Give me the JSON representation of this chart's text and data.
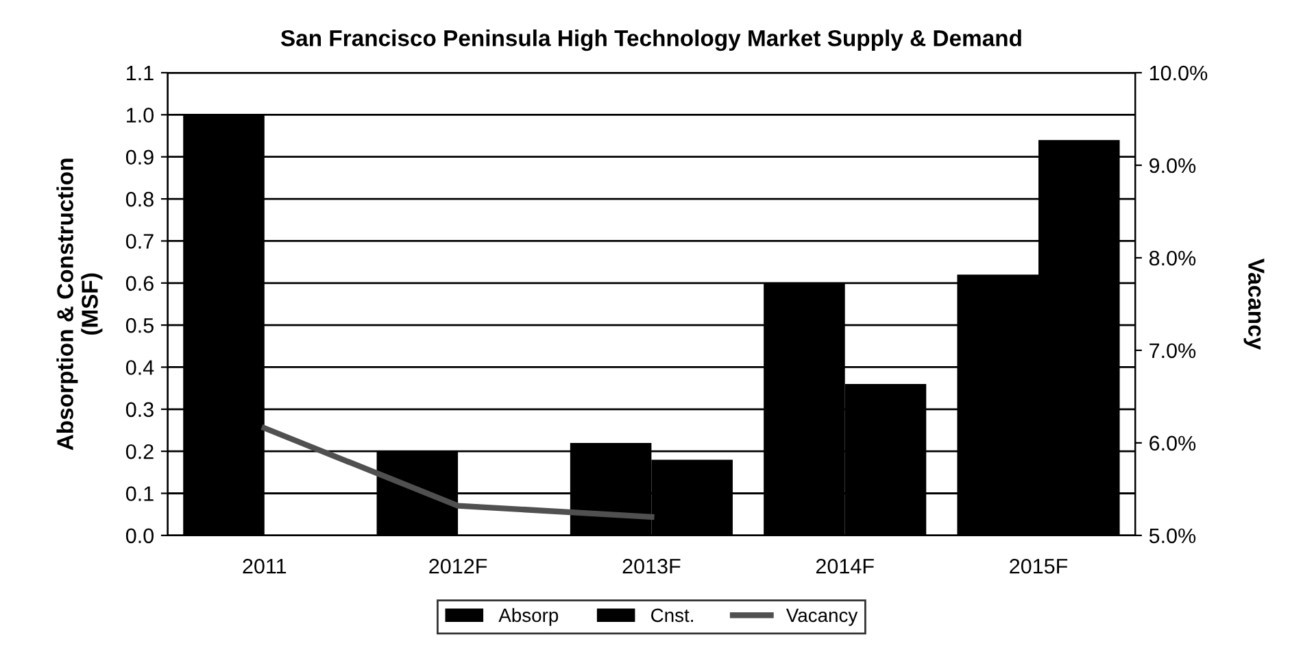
{
  "chart_data": {
    "type": "bar",
    "title": "San Francisco Peninsula High Technology Market Supply & Demand",
    "categories": [
      "2011",
      "2012F",
      "2013F",
      "2014F",
      "2015F"
    ],
    "series": [
      {
        "name": "Absorp",
        "color": "#000000",
        "values": [
          1.0,
          0.2,
          0.22,
          0.6,
          0.62
        ]
      },
      {
        "name": "Cnst.",
        "color": "#000000",
        "values": [
          0,
          0,
          0.18,
          0.36,
          0.94
        ]
      },
      {
        "name": "Vacancy",
        "type": "line",
        "axis": "y2",
        "color": "#505050",
        "values": [
          6.16,
          5.32,
          5.2,
          null,
          null
        ]
      }
    ],
    "ylabel": "Absorption & Construction\n(MSF)",
    "y2label": "Vacancy",
    "ylim": [
      0,
      1.1
    ],
    "yticks": [
      {
        "value": 0,
        "label": "0.0"
      },
      0.1,
      0.2,
      0.3,
      0.4,
      0.5,
      0.6,
      0.7,
      0.8,
      0.9,
      {
        "value": 1,
        "label": "1.0"
      },
      1.1
    ],
    "y2lim": [
      5,
      10
    ],
    "y2ticks": [
      {
        "value": 5,
        "label": "5.0%"
      },
      {
        "value": 6,
        "label": "6.0%"
      },
      {
        "value": 7,
        "label": "7.0%"
      },
      {
        "value": 8,
        "label": "8.0%"
      },
      {
        "value": 9,
        "label": "9.0%"
      },
      {
        "value": 10,
        "label": "10.0%"
      }
    ],
    "grid": "y",
    "legend": "bottom"
  }
}
